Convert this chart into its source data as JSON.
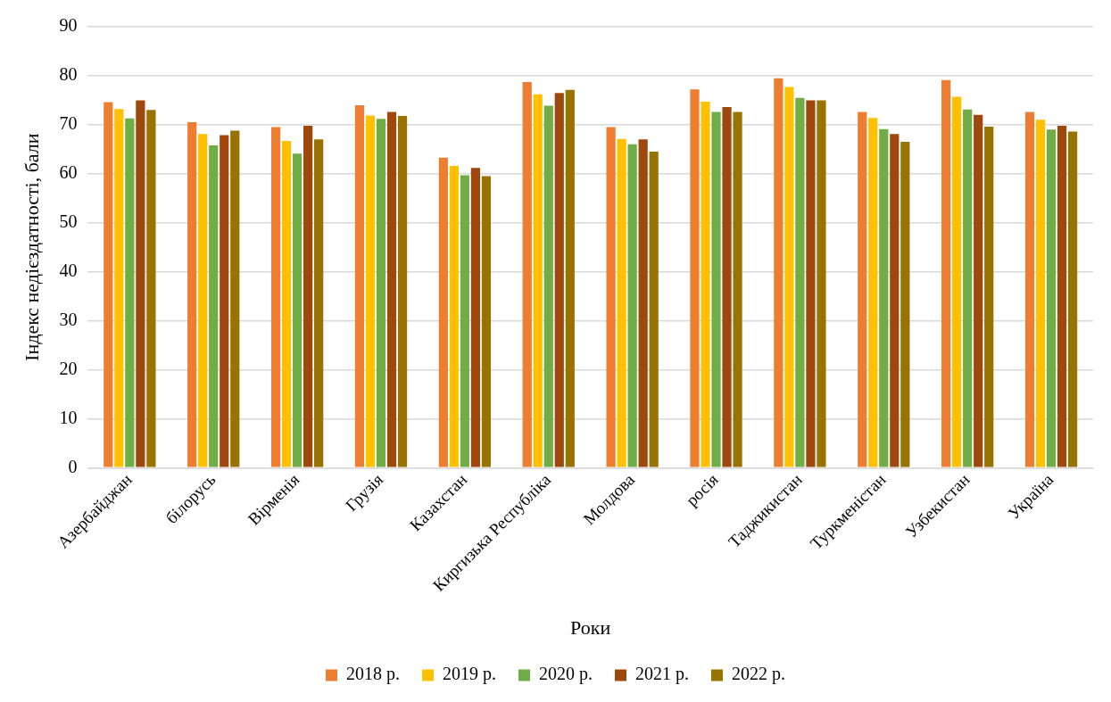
{
  "chart_data": {
    "type": "bar",
    "xlabel": "Роки",
    "ylabel": "Індекс недієздатності, бали",
    "categories": [
      "Азербайджан",
      "білорусь",
      "Вірменія",
      "Грузія",
      "Казахстан",
      "Киргизька Республіка",
      "Молдова",
      "росія",
      "Таджикистан",
      "Туркменістан",
      "Узбекистан",
      "Україна"
    ],
    "series": [
      {
        "name": "2018 р.",
        "color": "#ed7d31",
        "values": [
          74.6,
          70.5,
          69.5,
          74.0,
          63.3,
          78.7,
          69.5,
          77.2,
          79.5,
          72.6,
          79.1,
          72.6
        ]
      },
      {
        "name": "2019 р.",
        "color": "#ffc000",
        "values": [
          73.2,
          68.1,
          66.7,
          71.9,
          61.6,
          76.2,
          67.1,
          74.7,
          77.7,
          71.4,
          75.7,
          71.0
        ]
      },
      {
        "name": "2020 р.",
        "color": "#70ad47",
        "values": [
          71.3,
          65.8,
          64.1,
          71.2,
          59.7,
          73.9,
          66.0,
          72.6,
          75.5,
          69.1,
          73.1,
          69.0
        ]
      },
      {
        "name": "2021 р.",
        "color": "#9e480e",
        "values": [
          75.0,
          67.9,
          69.8,
          72.6,
          61.2,
          76.5,
          67.0,
          73.6,
          75.0,
          68.1,
          72.0,
          69.8
        ]
      },
      {
        "name": "2022 р.",
        "color": "#997300",
        "values": [
          73.0,
          68.8,
          67.0,
          71.8,
          59.5,
          77.1,
          64.5,
          72.6,
          75.0,
          66.5,
          69.6,
          68.6
        ]
      }
    ],
    "ylim": [
      0,
      90
    ],
    "yticks": [
      0,
      10,
      20,
      30,
      40,
      50,
      60,
      70,
      80,
      90
    ],
    "grid": "y",
    "legend": "bottom"
  }
}
